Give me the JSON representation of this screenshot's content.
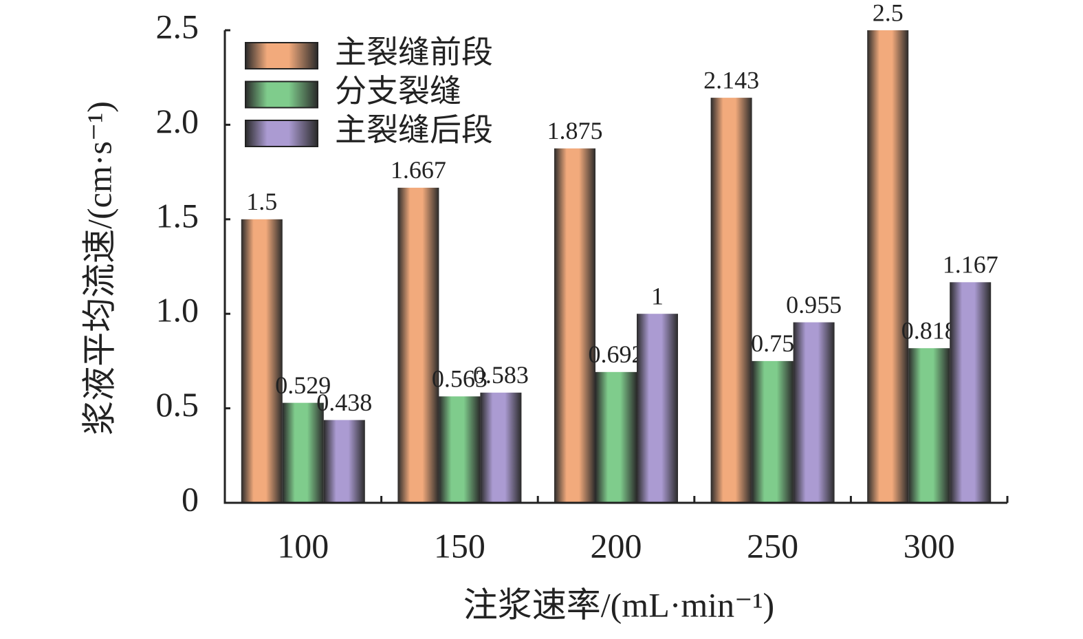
{
  "chart_data": {
    "type": "bar",
    "x_label": "注浆速率/(mL·min⁻¹)",
    "y_label": "浆液平均流速/(cm·s⁻¹)",
    "categories": [
      "100",
      "150",
      "200",
      "250",
      "300"
    ],
    "series": [
      {
        "name": "主裂缝前段",
        "color": "#f2aa7c",
        "values": [
          1.5,
          1.667,
          1.875,
          2.143,
          2.5
        ]
      },
      {
        "name": "分支裂缝",
        "color": "#7fcc8c",
        "values": [
          0.529,
          0.563,
          0.692,
          0.75,
          0.818
        ]
      },
      {
        "name": "主裂缝后段",
        "color": "#ab9bd2",
        "values": [
          0.438,
          0.583,
          1,
          0.955,
          1.167
        ]
      }
    ],
    "ylim": [
      0,
      2.5
    ],
    "yticks": [
      0,
      0.5,
      {
        "value": 1,
        "label": "1.0"
      },
      1.5,
      {
        "value": 2,
        "label": "2.0"
      },
      2.5
    ],
    "legend": "top-left",
    "grid": false
  }
}
